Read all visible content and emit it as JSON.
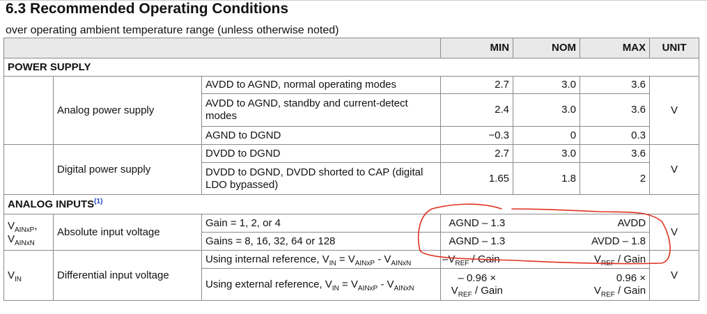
{
  "title": "6.3 Recommended Operating Conditions",
  "subtitle": "over operating ambient temperature range (unless otherwise noted)",
  "header": {
    "min": "MIN",
    "nom": "NOM",
    "max": "MAX",
    "unit": "UNIT"
  },
  "power_supply": {
    "section": "POWER SUPPLY",
    "analog": {
      "name": "Analog power supply",
      "unit": "V",
      "rows": [
        {
          "cond": "AVDD to AGND, normal operating modes",
          "min": "2.7",
          "nom": "3.0",
          "max": "3.6"
        },
        {
          "cond": "AVDD to AGND, standby and current-detect modes",
          "min": "2.4",
          "nom": "3.0",
          "max": "3.6"
        },
        {
          "cond": "AGND to DGND",
          "min": "−0.3",
          "nom": "0",
          "max": "0.3"
        }
      ]
    },
    "digital": {
      "name": "Digital power supply",
      "unit": "V",
      "rows": [
        {
          "cond": "DVDD to DGND",
          "min": "2.7",
          "nom": "3.0",
          "max": "3.6"
        },
        {
          "cond": "DVDD to DGND, DVDD shorted to CAP (digital LDO bypassed)",
          "min": "1.65",
          "nom": "1.8",
          "max": "2"
        }
      ]
    }
  },
  "analog_inputs": {
    "section": "ANALOG INPUTS",
    "footnote": "(1)",
    "absolute": {
      "sym1": "V",
      "sym1_sub": "AINxP",
      "sep": ",",
      "sym2": "V",
      "sym2_sub": "AINxN",
      "name": "Absolute input voltage",
      "unit": "V",
      "rows": [
        {
          "cond": "Gain = 1, 2, or 4",
          "min": "AGND – 1.3",
          "max": "AVDD"
        },
        {
          "cond": "Gains = 8, 16, 32, 64 or 128",
          "min": "AGND – 1.3",
          "max": "AVDD – 1.8"
        }
      ]
    },
    "differential": {
      "sym": "V",
      "sym_sub": "IN",
      "name": "Differential input voltage",
      "unit": "V",
      "internal": {
        "cond_a": "Using internal reference, V",
        "cond_sub1": "IN",
        "cond_b": " = V",
        "cond_sub2": "AINxP",
        "cond_c": " - V",
        "cond_sub3": "AINxN",
        "min_a": "–V",
        "min_sub": "REF",
        "min_b": " / Gain",
        "max_a": "V",
        "max_sub": "REF",
        "max_b": " / Gain"
      },
      "external": {
        "cond_a": "Using external reference, V",
        "cond_sub1": "IN",
        "cond_b": " = V",
        "cond_sub2": "AINxP",
        "cond_c": " - V",
        "cond_sub3": "AINxN",
        "min_l1": "– 0.96 ×",
        "min_a": "V",
        "min_sub": "REF",
        "min_b": " / Gain",
        "max_l1": "0.96 ×",
        "max_a": "V",
        "max_sub": "REF",
        "max_b": " / Gain"
      }
    }
  },
  "annotation_color": "#e0301e"
}
